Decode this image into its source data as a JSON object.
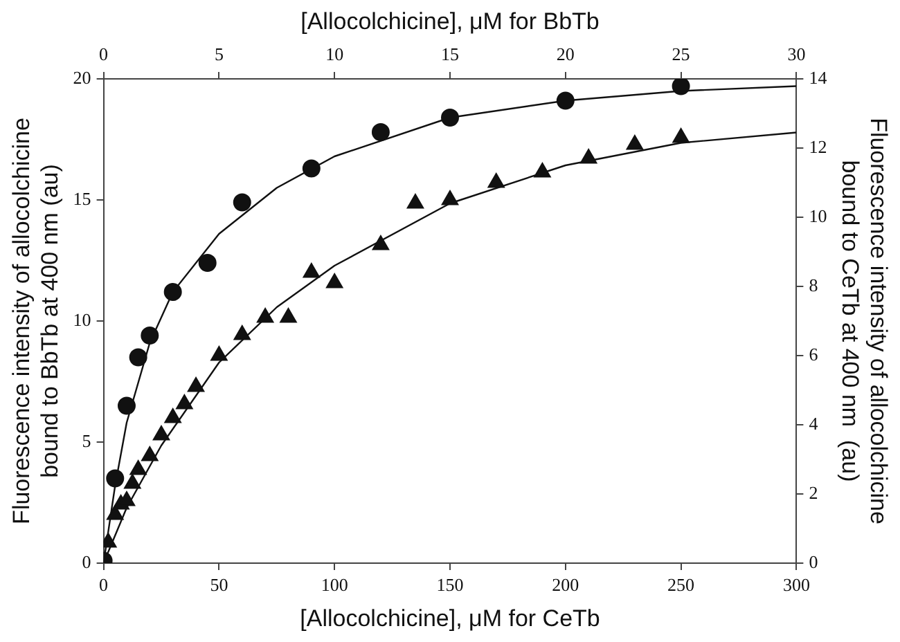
{
  "chart_data": {
    "type": "scatter",
    "xlabel": "[Allocolchicine], μM for CeTb",
    "x2label": "[Allocolchicine], μM for BbTb",
    "ylabel": "Fluorescence intensity of allocolchicine\nbound to BbTb at 400 nm (au)",
    "y2label": "Fluorescence intensity of allocolchicine\nbound to CeTb at 400 nm  (au)",
    "xlim": [
      0,
      300
    ],
    "xticks": [
      0,
      50,
      100,
      150,
      200,
      250,
      300
    ],
    "x2lim": [
      0,
      30
    ],
    "x2ticks": [
      0,
      5,
      10,
      15,
      20,
      25,
      30
    ],
    "ylim": [
      0,
      20
    ],
    "yticks": [
      0,
      5,
      10,
      15,
      20
    ],
    "y2lim": [
      0,
      14
    ],
    "y2ticks": [
      0,
      2,
      4,
      6,
      8,
      10,
      12,
      14
    ],
    "grid": false,
    "legend": false,
    "series": [
      {
        "axis": "x2",
        "marker": "circle",
        "color": "#111111",
        "x": [
          0,
          0.5,
          1,
          1.5,
          2,
          3,
          4.5,
          6,
          9,
          12,
          15,
          20,
          25
        ],
        "values": [
          0.1,
          3.5,
          6.5,
          8.5,
          9.4,
          11.2,
          12.4,
          14.9,
          16.3,
          17.8,
          18.4,
          19.1,
          19.7
        ]
      },
      {
        "type": "line",
        "axis": "x2",
        "marker": "none",
        "line_style": "solid",
        "color": "#111111",
        "x": [
          0,
          0.5,
          1,
          2,
          3,
          5,
          7.5,
          10,
          15,
          20,
          25,
          30
        ],
        "values": [
          0,
          3.2,
          5.8,
          9.1,
          11.2,
          13.6,
          15.5,
          16.8,
          18.4,
          19.1,
          19.5,
          19.7
        ]
      },
      {
        "axis": "y2",
        "marker": "triangle",
        "color": "#111111",
        "x": [
          2,
          5,
          7.5,
          10,
          12.5,
          15,
          20,
          25,
          30,
          35,
          40,
          50,
          60,
          70,
          80,
          90,
          100,
          120,
          135,
          150,
          170,
          190,
          210,
          230,
          250
        ],
        "values": [
          0.6,
          1.4,
          1.7,
          1.8,
          2.3,
          2.7,
          3.1,
          3.7,
          4.2,
          4.6,
          5.1,
          6,
          6.6,
          7.1,
          7.1,
          8.4,
          8.1,
          9.2,
          10.4,
          10.5,
          11,
          11.3,
          11.7,
          12.1,
          12.3
        ]
      },
      {
        "type": "line",
        "axis": "y2",
        "marker": "none",
        "line_style": "solid",
        "color": "#111111",
        "x": [
          0,
          10,
          25,
          50,
          75,
          100,
          150,
          200,
          250,
          300
        ],
        "values": [
          0,
          1.6,
          3.4,
          5.8,
          7.4,
          8.6,
          10.4,
          11.5,
          12.15,
          12.45
        ]
      }
    ]
  }
}
